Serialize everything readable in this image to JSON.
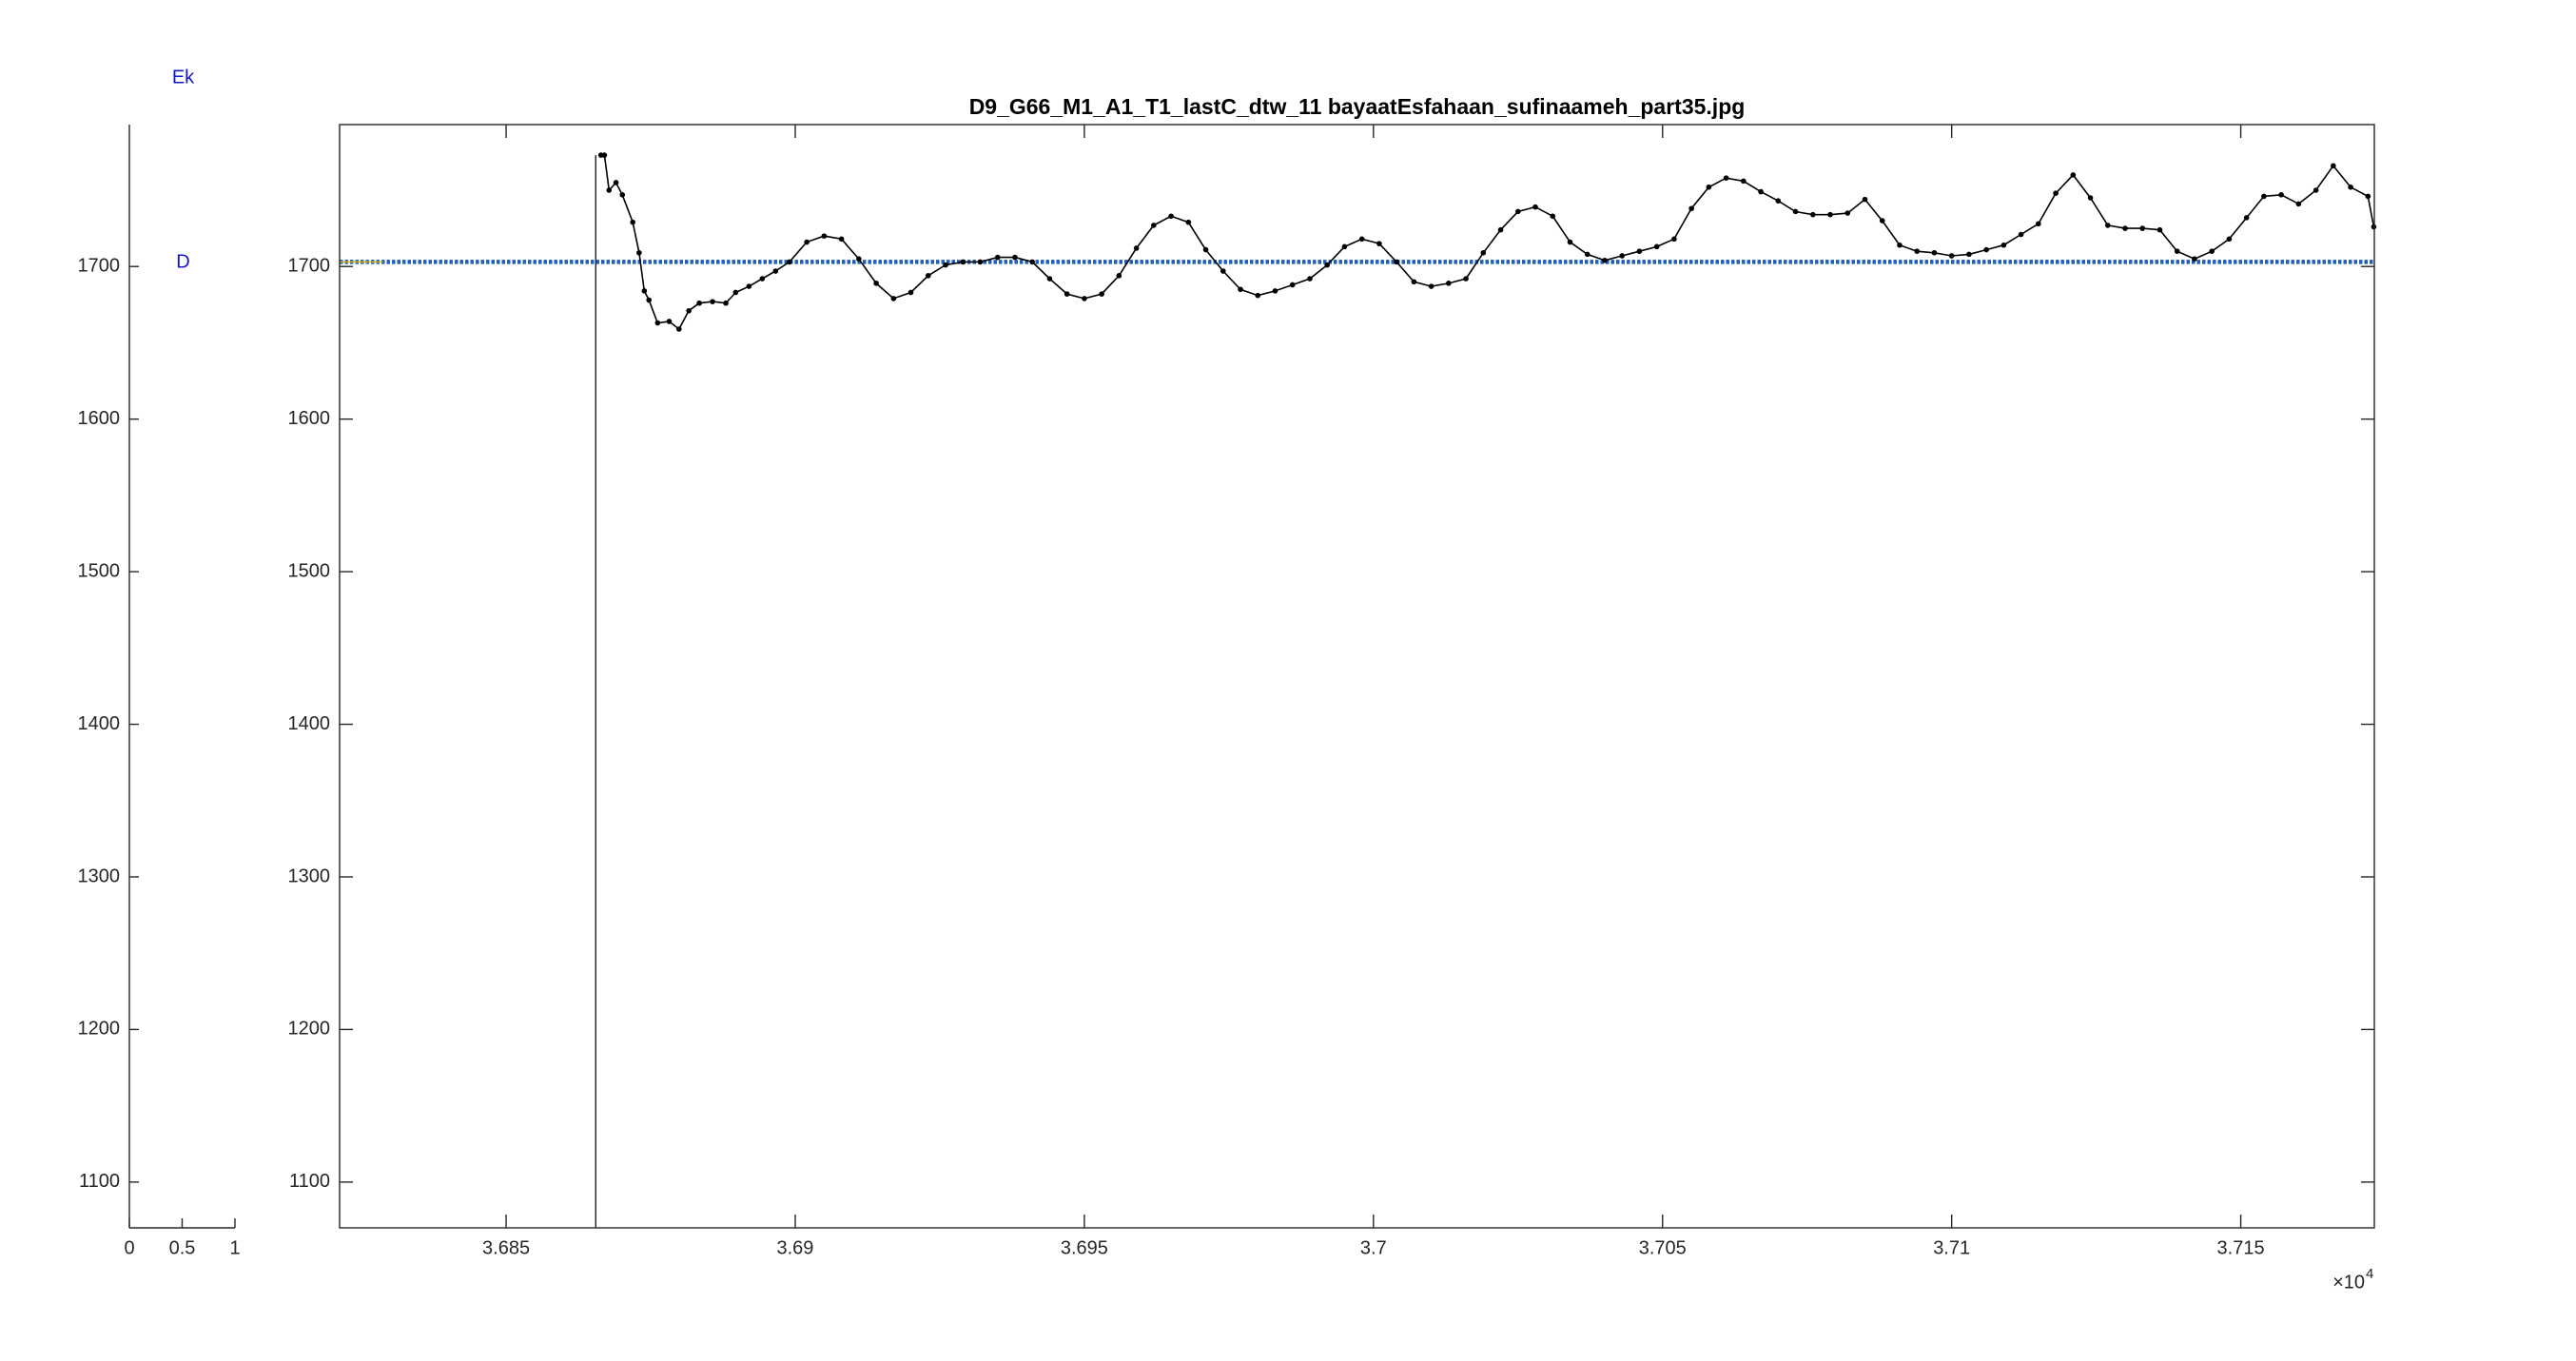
{
  "chart_data": [
    {
      "type": "line",
      "annotations": [
        "Ek",
        "D"
      ],
      "annotation_color": "#1414d2",
      "xlim": [
        0,
        1
      ],
      "xticks": [
        0,
        0.5,
        1
      ],
      "ylim": [
        1070,
        1793
      ],
      "yticks": [
        1100,
        1200,
        1300,
        1400,
        1500,
        1600,
        1700
      ],
      "series": []
    },
    {
      "type": "line",
      "title": "D9_G66_M1_A1_T1_lastC_dtw_11 bayaatEsfahaan_sufinaameh_part35.jpg",
      "xlim": [
        36821.2,
        37173.1
      ],
      "xticks": [
        {
          "value": 36850,
          "label": "3.685"
        },
        {
          "value": 36900,
          "label": "3.69"
        },
        {
          "value": 36950,
          "label": "3.695"
        },
        {
          "value": 37000,
          "label": "3.7"
        },
        {
          "value": 37050,
          "label": "3.705"
        },
        {
          "value": 37100,
          "label": "3.71"
        },
        {
          "value": 37150,
          "label": "3.715"
        }
      ],
      "x_multiplier": {
        "base": "×10",
        "exponent": 4
      },
      "ylim": [
        1070,
        1793
      ],
      "yticks": [
        1100,
        1200,
        1300,
        1400,
        1500,
        1600,
        1700
      ],
      "series": [
        {
          "color": "#1f5fb8",
          "marker": false,
          "x": [
            36821.2,
            37173.1
          ],
          "values": [
            1703,
            1703
          ]
        },
        {
          "color": "#e0b400",
          "marker": false,
          "x": [
            36821.2,
            36828.7
          ],
          "values": [
            1703,
            1703
          ]
        },
        {
          "color": "#222222",
          "marker": false,
          "x": [
            36865.5,
            36865.5
          ],
          "values": [
            1070,
            1773
          ]
        },
        {
          "color": "#000000",
          "marker": true,
          "x": [
            36866.4,
            36867,
            36867.8,
            36869,
            36870.1,
            36871.9,
            36873,
            36873.9,
            36874.7,
            36876.2,
            36878.2,
            36879.9,
            36881.6,
            36883.4,
            36885.7,
            36888,
            36889.7,
            36892,
            36894.3,
            36896.6,
            36899,
            36902,
            36905,
            36908,
            36911,
            36914,
            36917,
            36920,
            36923,
            36926,
            36929,
            36932,
            36935,
            36938,
            36941,
            36944,
            36947,
            36950,
            36953,
            36956,
            36959,
            36962,
            36965,
            36968,
            36971,
            36974,
            36977,
            36980,
            36983,
            36986,
            36989,
            36992,
            36995,
            36998,
            37001,
            37004,
            37007,
            37010,
            37013,
            37016,
            37019,
            37022,
            37025,
            37028,
            37031,
            37034,
            37037,
            37040,
            37043,
            37046,
            37049,
            37052,
            37055,
            37058,
            37061,
            37064,
            37067,
            37070,
            37073,
            37076,
            37079,
            37082,
            37085,
            37088,
            37091,
            37094,
            37097,
            37100,
            37103,
            37106,
            37109,
            37112,
            37115,
            37118,
            37121,
            37124,
            37127,
            37130,
            37133,
            37136,
            37139,
            37142,
            37145,
            37148,
            37151,
            37154,
            37157,
            37160,
            37163,
            37166,
            37169,
            37172,
            37173
          ],
          "values": [
            1773,
            1773,
            1750,
            1755,
            1747,
            1729,
            1709,
            1684,
            1678,
            1663,
            1664,
            1659,
            1671,
            1676,
            1677,
            1676,
            1683,
            1687,
            1692,
            1697,
            1703,
            1716,
            1720,
            1718,
            1705,
            1689,
            1679,
            1683,
            1694,
            1701,
            1703,
            1703,
            1706,
            1706,
            1703,
            1692,
            1682,
            1679,
            1682,
            1694,
            1712,
            1727,
            1733,
            1729,
            1711,
            1697,
            1685,
            1681,
            1684,
            1688,
            1692,
            1701,
            1713,
            1718,
            1715,
            1703,
            1690,
            1687,
            1689,
            1692,
            1709,
            1724,
            1736,
            1739,
            1733,
            1716,
            1708,
            1704,
            1707,
            1710,
            1713,
            1718,
            1738,
            1752,
            1758,
            1756,
            1749,
            1743,
            1736,
            1734,
            1734,
            1735,
            1744,
            1730,
            1714,
            1710,
            1709,
            1707,
            1708,
            1711,
            1714,
            1721,
            1728,
            1748,
            1760,
            1745,
            1727,
            1725,
            1725,
            1724,
            1710,
            1705,
            1710,
            1718,
            1732,
            1746,
            1747,
            1741,
            1750,
            1766,
            1752,
            1746,
            1726
          ]
        }
      ]
    }
  ]
}
